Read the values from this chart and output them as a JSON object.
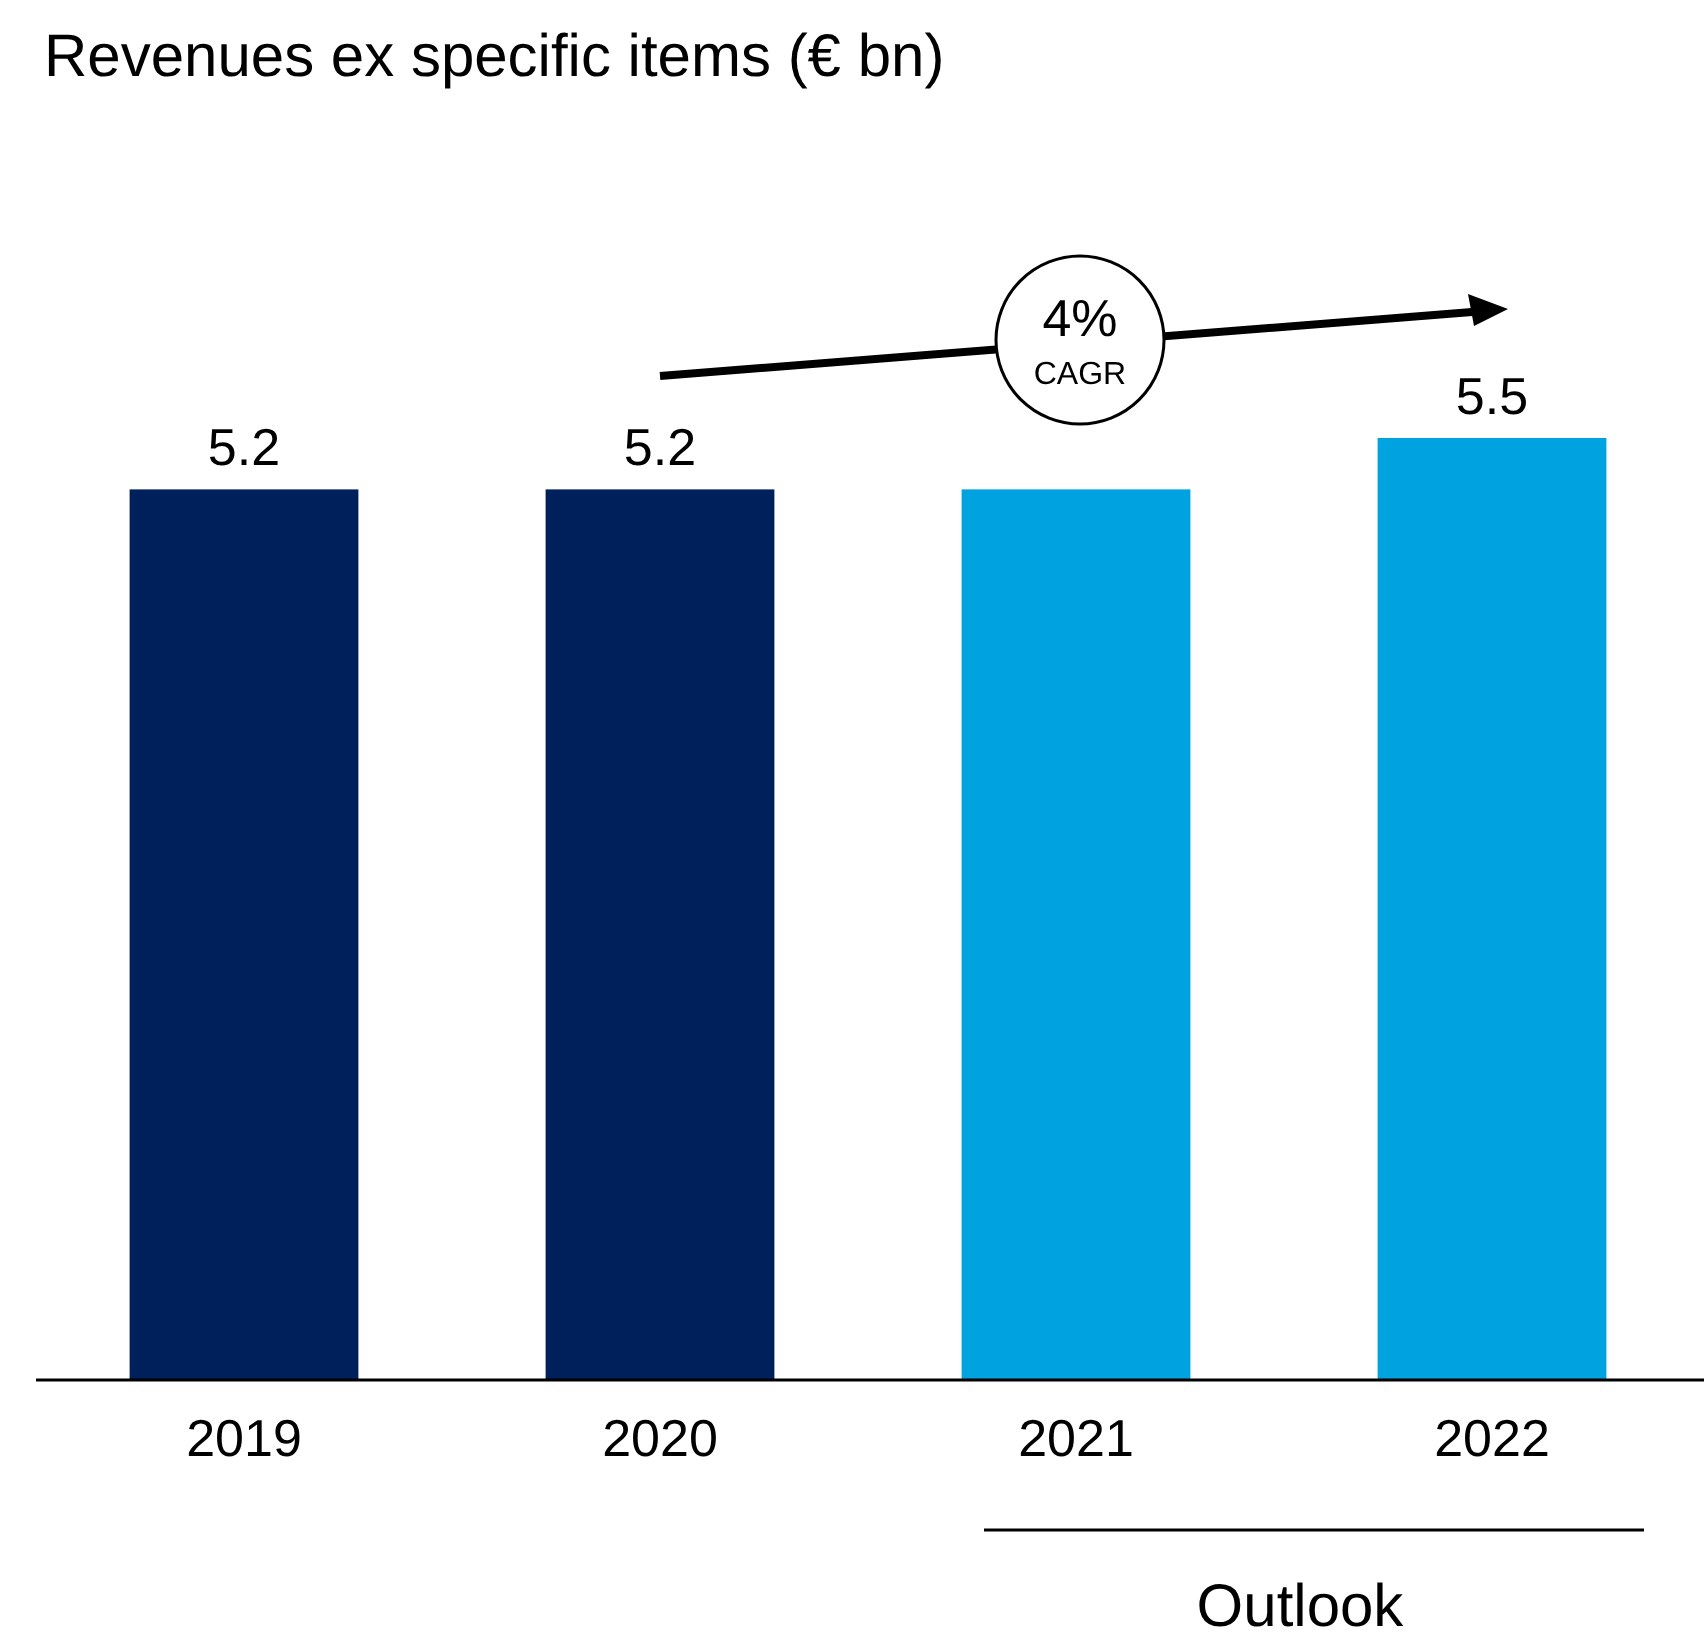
{
  "chart_data": {
    "type": "bar",
    "title": "Revenues ex specific items (€ bn)",
    "categories": [
      "2019",
      "2020",
      "2021",
      "2022"
    ],
    "values": [
      5.2,
      5.2,
      5.2,
      5.5
    ],
    "value_labels": [
      "5.2",
      "5.2",
      null,
      "5.5"
    ],
    "colors": [
      "#00205b",
      "#00205b",
      "#00a3e0",
      "#00a3e0"
    ],
    "annotations": [
      "4%",
      "CAGR",
      "Outlook"
    ]
  }
}
